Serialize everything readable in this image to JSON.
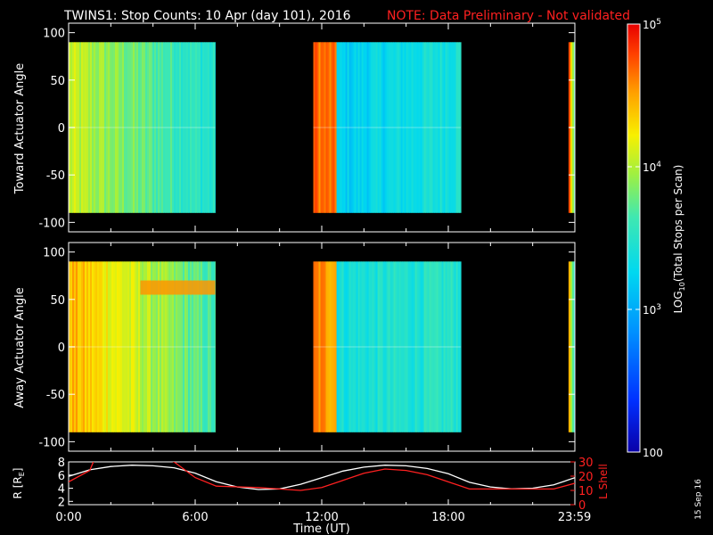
{
  "header": {
    "title": "TWINS1: Stop Counts: 10 Apr (day 101), 2016",
    "note": "NOTE: Data Preliminary - Not validated"
  },
  "date_stamp": "15 Sep 16",
  "colorbar": {
    "label": "LOG10(Total Stops per Scan)",
    "label_main": "LOG",
    "label_sub": "10",
    "label_rest": "(Total Stops per Scan)",
    "scale": "log",
    "range": [
      100,
      100000
    ],
    "ticks": [
      {
        "value": 100,
        "label": "100"
      },
      {
        "value": 1000,
        "label": "10",
        "exp": "3"
      },
      {
        "value": 10000,
        "label": "10",
        "exp": "4"
      },
      {
        "value": 100000,
        "label": "10",
        "exp": "5"
      }
    ]
  },
  "chart_data": [
    {
      "type": "heatmap",
      "id": "toward",
      "ylabel": "Toward Actuator Angle",
      "ylim": [
        -110,
        110
      ],
      "yticks": [
        100,
        50,
        0,
        -50,
        -100
      ],
      "xlim": [
        0,
        24
      ],
      "angle_range": [
        -90,
        90
      ],
      "data_segments": [
        {
          "t_start": 0.0,
          "t_end": 6.95,
          "log_levels_start": 4.05,
          "log_levels_end": 3.45
        },
        {
          "t_start": 11.6,
          "t_end": 12.7,
          "log_levels_start": 4.7,
          "log_levels_end": 4.6
        },
        {
          "t_start": 12.7,
          "t_end": 18.6,
          "log_levels_start": 3.2,
          "log_levels_end": 3.45
        },
        {
          "t_start": 23.7,
          "t_end": 24.0,
          "log_levels_start": 4.8,
          "log_levels_end": 3.3
        }
      ]
    },
    {
      "type": "heatmap",
      "id": "away",
      "ylabel": "Away Actuator Angle",
      "ylim": [
        -110,
        110
      ],
      "yticks": [
        100,
        50,
        0,
        -50,
        -100
      ],
      "xlim": [
        0,
        24
      ],
      "angle_range": [
        -90,
        90
      ],
      "data_segments": [
        {
          "t_start": 0.0,
          "t_end": 6.95,
          "log_levels_start": 4.45,
          "log_levels_end": 3.6
        },
        {
          "t_start": 11.6,
          "t_end": 12.7,
          "log_levels_start": 4.6,
          "log_levels_end": 4.5
        },
        {
          "t_start": 12.7,
          "t_end": 18.6,
          "log_levels_start": 3.4,
          "log_levels_end": 3.5
        },
        {
          "t_start": 23.7,
          "t_end": 24.0,
          "log_levels_start": 4.3,
          "log_levels_end": 3.3
        }
      ]
    },
    {
      "type": "line",
      "id": "orbit",
      "ylabel_left": "R [RE]",
      "ylabel_left_main": "R [R",
      "ylabel_left_sub": "E",
      "ylabel_left_end": "]",
      "ylabel_right": "L Shell",
      "ylim_left": [
        1.5,
        8
      ],
      "yticks_left": [
        8,
        6,
        4,
        2
      ],
      "ylim_right": [
        0,
        30
      ],
      "yticks_right": [
        30,
        20,
        10,
        0
      ],
      "xlabel": "Time (UT)",
      "xticks": [
        {
          "value": 0,
          "label": "0:00"
        },
        {
          "value": 6,
          "label": "6:00"
        },
        {
          "value": 12,
          "label": "12:00"
        },
        {
          "value": 18,
          "label": "18:00"
        },
        {
          "value": 23.983,
          "label": "23:59"
        }
      ],
      "series": [
        {
          "axis": "left",
          "color": "#ffffff",
          "x": [
            0,
            1,
            2,
            3,
            4,
            5,
            6,
            7,
            8,
            9,
            10,
            11,
            12,
            13,
            14,
            15,
            16,
            17,
            18,
            19,
            20,
            21,
            22,
            23,
            24
          ],
          "y": [
            5.8,
            6.8,
            7.3,
            7.5,
            7.4,
            7.1,
            6.3,
            5.0,
            4.2,
            3.8,
            3.9,
            4.6,
            5.6,
            6.6,
            7.2,
            7.5,
            7.4,
            7.0,
            6.2,
            4.9,
            4.2,
            3.9,
            4.0,
            4.5,
            5.6
          ]
        },
        {
          "axis": "right",
          "color": "#ff2020",
          "x": [
            0,
            1,
            1.2,
            4.8,
            5.0,
            6,
            7,
            8,
            9,
            10,
            11,
            12,
            13,
            14,
            15,
            16,
            17,
            18,
            19,
            20,
            21,
            22,
            23,
            24
          ],
          "y": [
            16,
            24,
            31,
            31,
            30,
            19,
            13,
            12.5,
            12,
            11,
            10,
            12,
            17,
            22,
            25,
            24,
            21,
            16,
            11,
            11,
            11,
            11,
            11,
            15
          ]
        }
      ]
    }
  ]
}
